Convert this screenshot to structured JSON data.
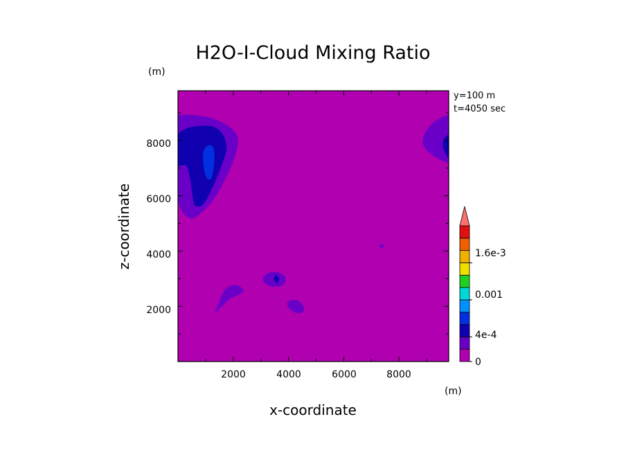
{
  "chart_data": {
    "type": "contour",
    "title": "H2O-I-Cloud Mixing Ratio",
    "xlabel": "x-coordinate",
    "ylabel": "z-coordinate",
    "x_unit": "(m)",
    "y_unit": "(m)",
    "xlim": [
      0,
      9800
    ],
    "ylim": [
      0,
      9800
    ],
    "x_ticks": [
      "2000",
      "4000",
      "6000",
      "8000"
    ],
    "y_ticks": [
      "2000",
      "4000",
      "6000",
      "8000"
    ],
    "annotations": [
      "y=100 m",
      "t=4050 sec"
    ],
    "colorbar": {
      "levels": [
        0,
        0.0002,
        0.0004,
        0.0006,
        0.0008,
        0.001,
        0.0012,
        0.0014,
        0.0016,
        0.0018,
        0.002
      ],
      "tick_labels": [
        {
          "label": "0",
          "value": 0
        },
        {
          "label": "4e-4",
          "value": 0.0004
        },
        {
          "label": "0.001",
          "value": 0.001
        },
        {
          "label": "1.6e-3",
          "value": 0.0016
        }
      ],
      "colors": [
        "#b000b0",
        "#6a00c8",
        "#1000b0",
        "#0030e0",
        "#0090ff",
        "#00d8d8",
        "#20d020",
        "#f0e000",
        "#f0b000",
        "#f06000",
        "#e01010"
      ],
      "extend_color": "#ff7070"
    },
    "field_background": "#b000b0"
  }
}
